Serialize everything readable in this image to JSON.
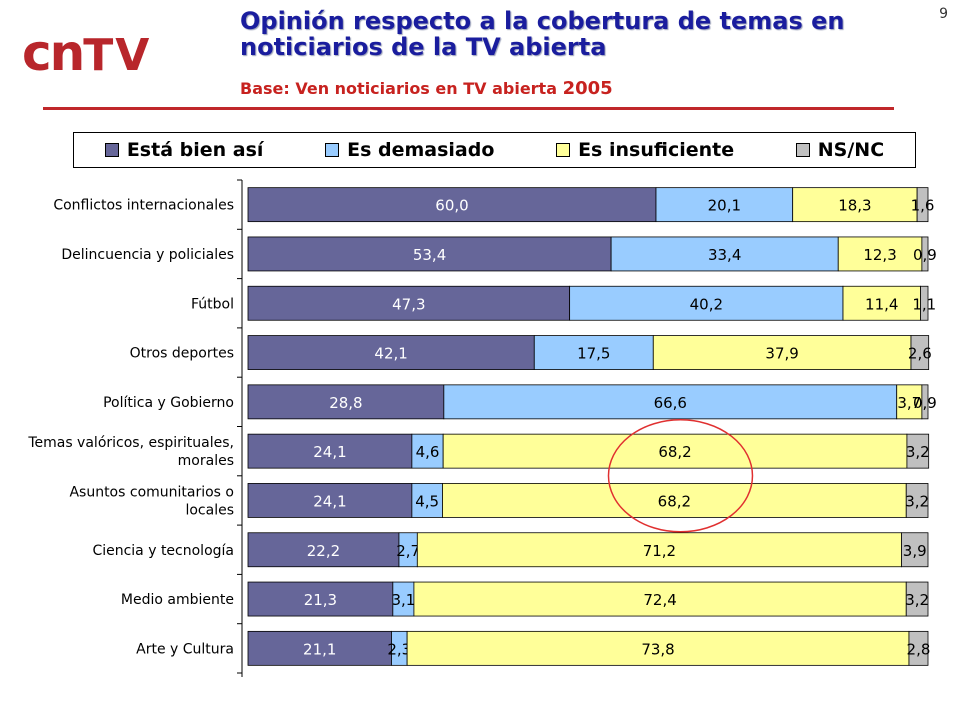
{
  "page_number": "9",
  "logo": {
    "cn": "cn",
    "tv": "TV"
  },
  "title": "Opinión respecto a la cobertura de temas en noticiarios de la TV abierta",
  "subtitle": {
    "text": "Base: Ven noticiarios en TV abierta",
    "year": "2005"
  },
  "colors": {
    "bien": "#666699",
    "demasiado": "#99ccff",
    "insuficiente": "#ffff99",
    "nsnc": "#c0c0c0",
    "accent": "#c0282a",
    "title": "#1a1d9e"
  },
  "chart_data": {
    "type": "bar",
    "orientation": "horizontal",
    "stacked": true,
    "xlim": [
      0,
      100
    ],
    "legend_position": "top",
    "categories": [
      "Conflictos internacionales",
      "Delincuencia y policiales",
      "Fútbol",
      "Otros deportes",
      "Política y Gobierno",
      "Temas valóricos, espirituales, morales",
      "Asuntos comunitarios o locales",
      "Ciencia y tecnología",
      "Medio ambiente",
      "Arte y Cultura"
    ],
    "category_lines": [
      [
        "Conflictos internacionales"
      ],
      [
        "Delincuencia y policiales"
      ],
      [
        "Fútbol"
      ],
      [
        "Otros deportes"
      ],
      [
        "Política y Gobierno"
      ],
      [
        "Temas valóricos, espirituales,",
        "morales"
      ],
      [
        "Asuntos comunitarios o",
        "locales"
      ],
      [
        "Ciencia y tecnología"
      ],
      [
        "Medio ambiente"
      ],
      [
        "Arte y Cultura"
      ]
    ],
    "series": [
      {
        "name": "Está bien así",
        "color": "#666699",
        "values": [
          60.0,
          53.4,
          47.3,
          42.1,
          28.8,
          24.1,
          24.1,
          22.2,
          21.3,
          21.1
        ],
        "labels": [
          "60,0",
          "53,4",
          "47,3",
          "42,1",
          "28,8",
          "24,1",
          "24,1",
          "22,2",
          "21,3",
          "21,1"
        ]
      },
      {
        "name": "Es demasiado",
        "color": "#99ccff",
        "values": [
          20.1,
          33.4,
          40.2,
          17.5,
          66.6,
          4.6,
          4.5,
          2.7,
          3.1,
          2.3
        ],
        "labels": [
          "20,1",
          "33,4",
          "40,2",
          "17,5",
          "66,6",
          "4,6",
          "4,5",
          "2,7",
          "3,1",
          "2,3"
        ]
      },
      {
        "name": "Es insuficiente",
        "color": "#ffff99",
        "values": [
          18.3,
          12.3,
          11.4,
          37.9,
          3.7,
          68.2,
          68.2,
          71.2,
          72.4,
          73.8
        ],
        "labels": [
          "18,3",
          "12,3",
          "11,4",
          "37,9",
          "3,7",
          "68,2",
          "68,2",
          "71,2",
          "72,4",
          "73,8"
        ]
      },
      {
        "name": "NS/NC",
        "color": "#c0c0c0",
        "values": [
          1.6,
          0.9,
          1.1,
          2.6,
          0.9,
          3.2,
          3.2,
          3.9,
          3.2,
          2.8
        ],
        "labels": [
          "1,6",
          "0,9",
          "1,1",
          "2,6",
          "0,9",
          "3,2",
          "3,2",
          "3,9",
          "3,2",
          "2,8"
        ]
      }
    ],
    "annotation": {
      "type": "ellipse",
      "highlights": "Es insuficiente",
      "rows": [
        "Temas valóricos, espirituales, morales",
        "Asuntos comunitarios o locales"
      ]
    }
  }
}
